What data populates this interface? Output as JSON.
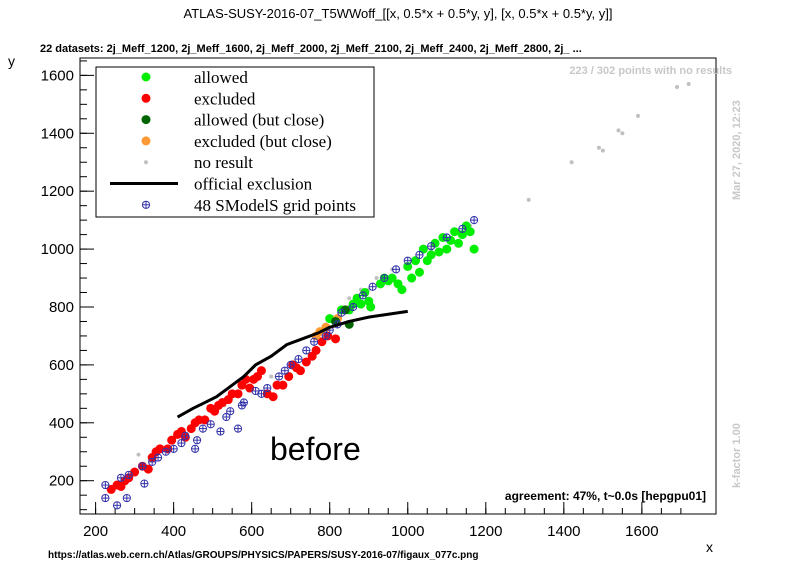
{
  "chart_data": {
    "type": "scatter",
    "title": "ATLAS-SUSY-2016-07_T5WWoff_[[x, 0.5*x + 0.5*y, y], [x, 0.5*x + 0.5*y, y]]",
    "subtitle": "22 datasets: 2j_Meff_1200, 2j_Meff_1600, 2j_Meff_2000, 2j_Meff_2100, 2j_Meff_2400, 2j_Meff_2800, 2j_ ...",
    "xlabel": "x",
    "ylabel": "y",
    "xlim": [
      160,
      1790
    ],
    "ylim": [
      85,
      1660
    ],
    "xticks": [
      200,
      400,
      600,
      800,
      1000,
      1200,
      1400,
      1600
    ],
    "yticks": [
      200,
      400,
      600,
      800,
      1000,
      1200,
      1400,
      1600
    ],
    "grid": false,
    "legend_position": "top-left",
    "annotations": {
      "no_results": "223 / 302 points with no results",
      "date": "Mar 27, 2020, 12:23",
      "kfactor": "k-factor 1.00",
      "agreement": "agreement: 47%, t~0.0s [hepgpu01]",
      "before": "before",
      "url": "https://atlas.web.cern.ch/Atlas/GROUPS/PHYSICS/PAPERS/SUSY-2016-07/figaux_077c.png"
    },
    "colors": {
      "allowed": "#00ee00",
      "excluded": "#ff0000",
      "allowed_close": "#006400",
      "excluded_close": "#ff9933",
      "no_result": "#c0c0c0",
      "official": "#000000",
      "grid_points": "#3333aa"
    },
    "series": [
      {
        "name": "allowed",
        "marker": "dot",
        "points": [
          [
            800,
            760
          ],
          [
            830,
            790
          ],
          [
            850,
            790
          ],
          [
            860,
            810
          ],
          [
            870,
            830
          ],
          [
            880,
            810
          ],
          [
            890,
            850
          ],
          [
            900,
            820
          ],
          [
            905,
            800
          ],
          [
            930,
            880
          ],
          [
            940,
            900
          ],
          [
            950,
            890
          ],
          [
            960,
            900
          ],
          [
            975,
            880
          ],
          [
            985,
            860
          ],
          [
            1000,
            940
          ],
          [
            1010,
            900
          ],
          [
            1020,
            960
          ],
          [
            1030,
            920
          ],
          [
            1040,
            1000
          ],
          [
            1050,
            960
          ],
          [
            1060,
            980
          ],
          [
            1070,
            1020
          ],
          [
            1080,
            990
          ],
          [
            1090,
            1040
          ],
          [
            1100,
            1000
          ],
          [
            1110,
            1030
          ],
          [
            1120,
            1060
          ],
          [
            1130,
            1020
          ],
          [
            1140,
            1050
          ],
          [
            1150,
            1080
          ],
          [
            1160,
            1060
          ],
          [
            1170,
            1000
          ]
        ]
      },
      {
        "name": "excluded",
        "points": [
          [
            240,
            170
          ],
          [
            255,
            185
          ],
          [
            265,
            180
          ],
          [
            275,
            200
          ],
          [
            285,
            210
          ],
          [
            300,
            230
          ],
          [
            320,
            250
          ],
          [
            335,
            240
          ],
          [
            345,
            280
          ],
          [
            355,
            300
          ],
          [
            365,
            310
          ],
          [
            385,
            310
          ],
          [
            395,
            340
          ],
          [
            410,
            360
          ],
          [
            420,
            370
          ],
          [
            430,
            350
          ],
          [
            445,
            380
          ],
          [
            455,
            400
          ],
          [
            465,
            410
          ],
          [
            480,
            410
          ],
          [
            495,
            450
          ],
          [
            505,
            440
          ],
          [
            515,
            460
          ],
          [
            525,
            470
          ],
          [
            540,
            480
          ],
          [
            550,
            500
          ],
          [
            565,
            500
          ],
          [
            575,
            530
          ],
          [
            585,
            550
          ],
          [
            595,
            520
          ],
          [
            605,
            550
          ],
          [
            615,
            560
          ],
          [
            625,
            580
          ],
          [
            640,
            500
          ],
          [
            655,
            490
          ],
          [
            665,
            530
          ],
          [
            680,
            530
          ],
          [
            695,
            560
          ],
          [
            705,
            600
          ],
          [
            715,
            590
          ],
          [
            725,
            580
          ],
          [
            740,
            610
          ],
          [
            755,
            630
          ],
          [
            765,
            650
          ],
          [
            780,
            680
          ],
          [
            795,
            700
          ],
          [
            815,
            690
          ]
        ]
      },
      {
        "name": "allowed (but close)",
        "points": [
          [
            815,
            750
          ],
          [
            840,
            790
          ],
          [
            850,
            740
          ]
        ]
      },
      {
        "name": "excluded (but close)",
        "points": [
          [
            765,
            700
          ],
          [
            775,
            715
          ],
          [
            790,
            730
          ],
          [
            820,
            760
          ]
        ]
      },
      {
        "name": "no result",
        "points": [
          [
            850,
            830
          ],
          [
            880,
            860
          ],
          [
            920,
            900
          ],
          [
            960,
            930
          ],
          [
            1010,
            960
          ],
          [
            1060,
            1000
          ],
          [
            1110,
            1040
          ],
          [
            1160,
            1080
          ],
          [
            1310,
            1170
          ],
          [
            1420,
            1300
          ],
          [
            1490,
            1350
          ],
          [
            1500,
            1340
          ],
          [
            1540,
            1410
          ],
          [
            1550,
            1400
          ],
          [
            1590,
            1460
          ],
          [
            1690,
            1560
          ],
          [
            1720,
            1570
          ],
          [
            310,
            290
          ],
          [
            420,
            380
          ],
          [
            530,
            460
          ],
          [
            650,
            560
          ],
          [
            790,
            740
          ],
          [
            900,
            860
          ]
        ]
      },
      {
        "name": "official exclusion",
        "line": [
          [
            410,
            420
          ],
          [
            450,
            450
          ],
          [
            480,
            470
          ],
          [
            510,
            490
          ],
          [
            540,
            520
          ],
          [
            580,
            560
          ],
          [
            610,
            600
          ],
          [
            650,
            630
          ],
          [
            690,
            670
          ],
          [
            730,
            690
          ],
          [
            770,
            710
          ],
          [
            800,
            730
          ],
          [
            850,
            750
          ],
          [
            900,
            765
          ],
          [
            950,
            775
          ],
          [
            1000,
            785
          ]
        ]
      },
      {
        "name": "48 SModelS grid points",
        "points": [
          [
            225,
            185
          ],
          [
            225,
            140
          ],
          [
            255,
            115
          ],
          [
            265,
            210
          ],
          [
            280,
            140
          ],
          [
            285,
            220
          ],
          [
            320,
            250
          ],
          [
            325,
            190
          ],
          [
            345,
            265
          ],
          [
            360,
            280
          ],
          [
            380,
            300
          ],
          [
            400,
            310
          ],
          [
            420,
            330
          ],
          [
            430,
            355
          ],
          [
            455,
            310
          ],
          [
            460,
            340
          ],
          [
            475,
            380
          ],
          [
            495,
            395
          ],
          [
            520,
            370
          ],
          [
            535,
            420
          ],
          [
            545,
            440
          ],
          [
            565,
            380
          ],
          [
            575,
            460
          ],
          [
            580,
            470
          ],
          [
            610,
            510
          ],
          [
            625,
            500
          ],
          [
            640,
            520
          ],
          [
            670,
            560
          ],
          [
            685,
            580
          ],
          [
            700,
            600
          ],
          [
            720,
            620
          ],
          [
            740,
            650
          ],
          [
            760,
            680
          ],
          [
            790,
            700
          ],
          [
            800,
            720
          ],
          [
            820,
            740
          ],
          [
            830,
            780
          ],
          [
            860,
            800
          ],
          [
            885,
            840
          ],
          [
            910,
            870
          ],
          [
            940,
            900
          ],
          [
            970,
            930
          ],
          [
            1000,
            960
          ],
          [
            1030,
            980
          ],
          [
            1060,
            1010
          ],
          [
            1100,
            1040
          ],
          [
            1140,
            1070
          ],
          [
            1170,
            1100
          ]
        ]
      }
    ]
  }
}
